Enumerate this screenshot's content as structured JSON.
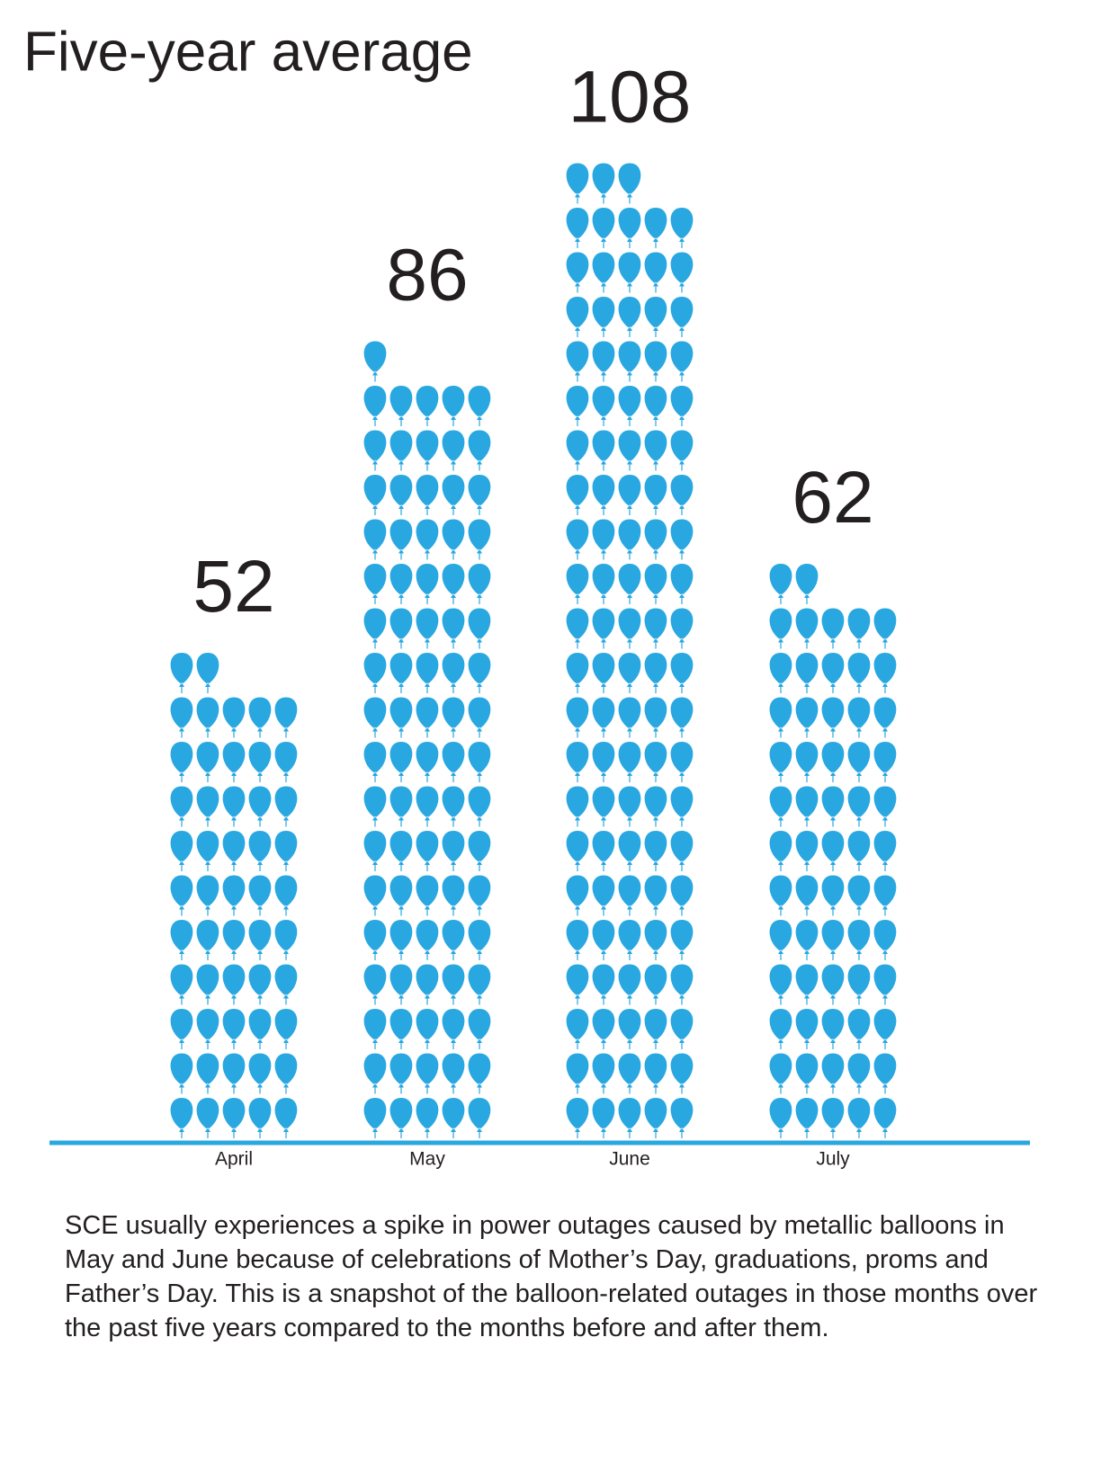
{
  "chart_data": {
    "type": "pictograph",
    "title": "Five-year average",
    "categories": [
      "April",
      "May",
      "June",
      "July"
    ],
    "values": [
      52,
      86,
      108,
      62
    ],
    "color": "#29a7e1",
    "axis_color": "#29a7e1",
    "note": "SCE usually experiences a spike in power outages caused by metallic balloons in May and June because of celebrations of Mother’s Day, graduations, proms and Father’s Day. This is a snapshot of the balloon-related outages in those months over the past five years compared to the months before and after them."
  }
}
